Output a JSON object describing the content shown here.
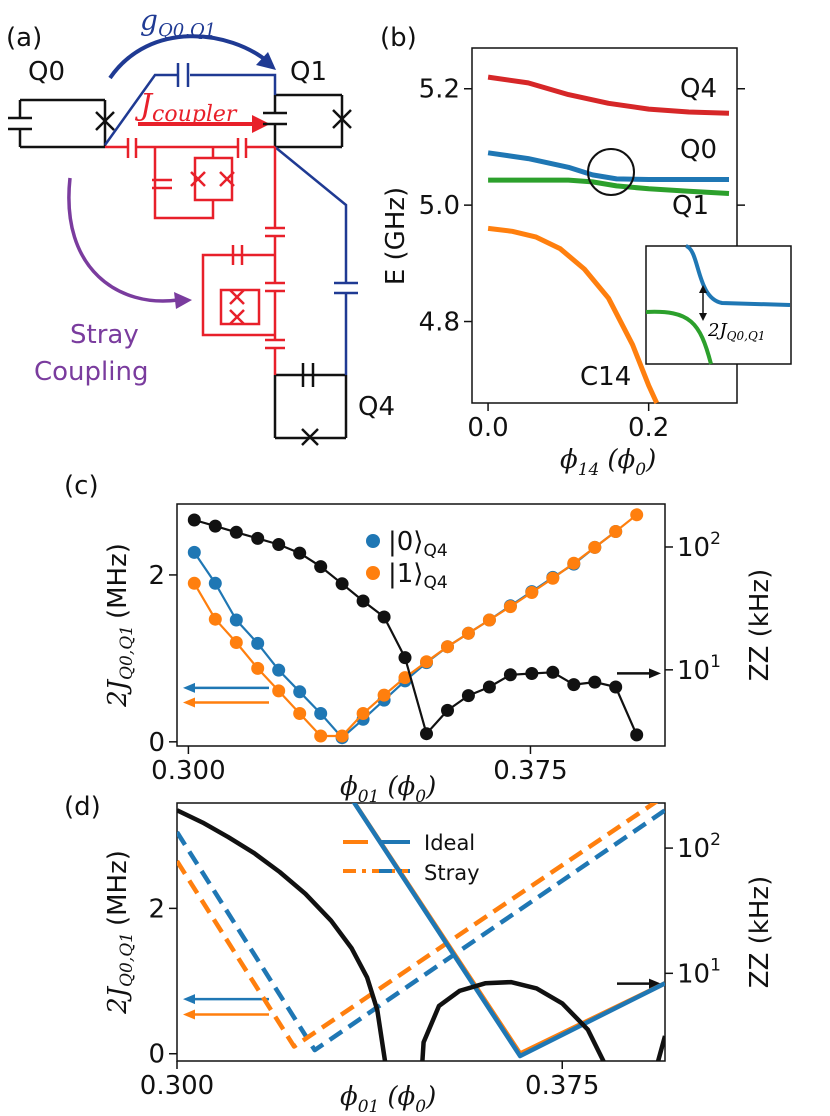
{
  "panel_a": {
    "label": "(a)",
    "q0": "Q0",
    "q1": "Q1",
    "q4": "Q4",
    "g_text": "g",
    "g_sub": "Q0,Q1",
    "j_text": "J",
    "j_sub": "coupler",
    "stray_line1": "Stray",
    "stray_line2": "Coupling",
    "colors": {
      "blue": "#1f3a93",
      "red": "#e8202a",
      "purple": "#7a3c9e",
      "black": "#111111"
    }
  },
  "chart_data": [
    {
      "panel": "(b)",
      "type": "line",
      "xlabel_main": "ϕ",
      "xlabel_sub": "14",
      "xlabel_unit": "(ϕ",
      "xlabel_unit_sub": "0",
      "ylabel": "E (GHz)",
      "xlim": [
        -0.02,
        0.31
      ],
      "ylim": [
        4.66,
        5.27
      ],
      "xticks": [
        0.0,
        0.2
      ],
      "xtick_labels": [
        "0.0",
        "0.2"
      ],
      "yticks": [
        4.8,
        5.0,
        5.2
      ],
      "ytick_labels": [
        "4.8",
        "5.0",
        "5.2"
      ],
      "series": [
        {
          "name": "Q4",
          "color": "#d62728",
          "x": [
            0.0,
            0.05,
            0.1,
            0.15,
            0.2,
            0.25,
            0.3
          ],
          "y": [
            5.22,
            5.21,
            5.19,
            5.175,
            5.165,
            5.16,
            5.158
          ]
        },
        {
          "name": "Q0",
          "color": "#1f77b4",
          "x": [
            0.0,
            0.05,
            0.1,
            0.13,
            0.16,
            0.2,
            0.25,
            0.3
          ],
          "y": [
            5.09,
            5.08,
            5.065,
            5.052,
            5.045,
            5.044,
            5.044,
            5.044
          ]
        },
        {
          "name": "Q1",
          "color": "#2ca02c",
          "x": [
            0.0,
            0.05,
            0.1,
            0.13,
            0.16,
            0.2,
            0.25,
            0.3
          ],
          "y": [
            5.043,
            5.043,
            5.043,
            5.04,
            5.033,
            5.028,
            5.024,
            5.02
          ]
        },
        {
          "name": "C14",
          "color": "#ff7f0e",
          "x": [
            0.0,
            0.03,
            0.06,
            0.09,
            0.12,
            0.15,
            0.18,
            0.2,
            0.21
          ],
          "y": [
            4.96,
            4.955,
            4.945,
            4.925,
            4.89,
            4.84,
            4.76,
            4.69,
            4.655
          ]
        }
      ],
      "labels": [
        "Q4",
        "Q0",
        "Q1",
        "C14"
      ],
      "inset_label": "2J",
      "inset_label_sub": "Q0,Q1"
    },
    {
      "panel": "(c)",
      "type": "line",
      "xlabel_main": "ϕ",
      "xlabel_sub": "01",
      "xlabel_unit": "(ϕ",
      "xlabel_unit_sub": "0",
      "ylabel_left": "2J",
      "ylabel_left_sub": "Q0,Q1",
      "ylabel_left_unit": "(MHz)",
      "ylabel_right": "ZZ (kHz)",
      "xlim": [
        0.2975,
        0.4045
      ],
      "ylim_left": [
        -0.05,
        2.85
      ],
      "ylim_right_log": [
        0.38,
        2.35
      ],
      "xticks": [
        0.3,
        0.375
      ],
      "xtick_labels": [
        "0.300",
        "0.375"
      ],
      "yticks_left": [
        0,
        2
      ],
      "ytick_labels_left": [
        "0",
        "2"
      ],
      "yticks_right": [
        1,
        2
      ],
      "ytick_labels_right": [
        "10",
        "10"
      ],
      "ytick_exponents_right": [
        "1",
        "2"
      ],
      "legend": [
        "|0⟩",
        "|1⟩"
      ],
      "legend_sub": "Q4",
      "series": [
        {
          "name": "|0⟩_Q4",
          "color": "#1f77b4",
          "axis": "left",
          "x": [
            0.3013,
            0.3059,
            0.3105,
            0.3152,
            0.3198,
            0.3244,
            0.329,
            0.3337,
            0.3383,
            0.3429,
            0.3475,
            0.3522,
            0.3568,
            0.3614,
            0.366,
            0.3706,
            0.3753,
            0.3799,
            0.3845,
            0.3891,
            0.3937
          ],
          "y": [
            2.27,
            1.9,
            1.46,
            1.18,
            0.86,
            0.6,
            0.34,
            0.05,
            0.27,
            0.5,
            0.73,
            0.95,
            1.14,
            1.3,
            1.46,
            1.63,
            1.8,
            1.97,
            2.13,
            2.33,
            2.52
          ]
        },
        {
          "name": "|1⟩_Q4",
          "color": "#ff7f0e",
          "axis": "left",
          "x": [
            0.3013,
            0.3059,
            0.3105,
            0.3152,
            0.3198,
            0.3244,
            0.329,
            0.3337,
            0.3383,
            0.3429,
            0.3475,
            0.3522,
            0.3568,
            0.3614,
            0.366,
            0.3706,
            0.3753,
            0.3799,
            0.3845,
            0.3891,
            0.3937,
            0.3983
          ],
          "y": [
            1.9,
            1.47,
            1.19,
            0.88,
            0.61,
            0.34,
            0.07,
            0.07,
            0.34,
            0.56,
            0.77,
            0.96,
            1.14,
            1.3,
            1.46,
            1.62,
            1.79,
            1.96,
            2.14,
            2.33,
            2.52,
            2.72
          ]
        },
        {
          "name": "ZZ",
          "color": "#111111",
          "axis": "right",
          "x": [
            0.3013,
            0.3059,
            0.3105,
            0.3152,
            0.3198,
            0.3244,
            0.329,
            0.3337,
            0.3383,
            0.3429,
            0.3475,
            0.3522,
            0.3568,
            0.3614,
            0.366,
            0.3706,
            0.3753,
            0.3799,
            0.3845,
            0.3891,
            0.3937,
            0.3983
          ],
          "log10y": [
            2.22,
            2.17,
            2.12,
            2.07,
            2.02,
            1.95,
            1.84,
            1.7,
            1.56,
            1.43,
            1.1,
            0.48,
            0.67,
            0.79,
            0.86,
            0.96,
            0.97,
            0.98,
            0.88,
            0.9,
            0.86,
            0.47
          ]
        }
      ],
      "arrow_colors": [
        "#1f77b4",
        "#ff7f0e",
        "#111111"
      ]
    },
    {
      "panel": "(d)",
      "type": "line",
      "xlabel_main": "ϕ",
      "xlabel_sub": "01",
      "xlabel_unit": "(ϕ",
      "xlabel_unit_sub": "0",
      "ylabel_left": "2J",
      "ylabel_left_sub": "Q0,Q1",
      "ylabel_left_unit": "(MHz)",
      "ylabel_right": "ZZ (kHz)",
      "xlim": [
        0.3,
        0.395
      ],
      "ylim_left": [
        -0.1,
        3.45
      ],
      "ylim_right_log": [
        0.3,
        2.36
      ],
      "xticks": [
        0.3,
        0.375
      ],
      "xtick_labels": [
        "0.300",
        "0.375"
      ],
      "yticks_left": [
        0,
        2
      ],
      "ytick_labels_left": [
        "0",
        "2"
      ],
      "yticks_right": [
        1,
        2
      ],
      "ytick_labels_right": [
        "10",
        "10"
      ],
      "ytick_exponents_right": [
        "1",
        "2"
      ],
      "legend": [
        "Ideal",
        "Stray"
      ],
      "series": [
        {
          "name": "Ideal blue",
          "color": "#1f77b4",
          "dash": "long",
          "axis": "left",
          "x": [
            0.3,
            0.3268,
            0.395
          ],
          "y": [
            3.05,
            0.05,
            3.35
          ]
        },
        {
          "name": "Ideal orange",
          "color": "#ff7f0e",
          "dash": "long",
          "axis": "left",
          "x": [
            0.3,
            0.3228,
            0.395
          ],
          "y": [
            2.65,
            0.1,
            3.55
          ]
        },
        {
          "name": "ZZ ideal",
          "color": "#ff7f0e",
          "dash": "solid",
          "axis": "right",
          "x": [
            0.3315,
            0.3668,
            0.395
          ],
          "log10y": [
            2.55,
            0.36,
            0.92
          ]
        },
        {
          "name": "ZZ stray",
          "color": "#1f77b4",
          "dash": "solid",
          "axis": "right",
          "x": [
            0.3315,
            0.3668,
            0.395
          ],
          "log10y": [
            2.55,
            0.34,
            0.92
          ]
        },
        {
          "name": "2J stray",
          "color": "#111111",
          "dash": "solid",
          "axis": "left",
          "x": [
            0.3,
            0.305,
            0.31,
            0.315,
            0.32,
            0.325,
            0.33,
            0.334,
            0.337,
            0.339,
            0.3405
          ],
          "y": [
            3.35,
            3.18,
            2.98,
            2.76,
            2.5,
            2.2,
            1.83,
            1.45,
            1.05,
            0.6,
            -0.1
          ]
        },
        {
          "name": "ZZ hump",
          "color": "#111111",
          "dash": "solid",
          "axis": "right",
          "x": [
            0.3473,
            0.348,
            0.351,
            0.355,
            0.36,
            0.365,
            0.37,
            0.375,
            0.38,
            0.383,
            0.3845
          ],
          "log10y": [
            0.0,
            0.45,
            0.74,
            0.86,
            0.92,
            0.93,
            0.88,
            0.76,
            0.55,
            0.3,
            0.0
          ]
        },
        {
          "name": "ZZ tail",
          "color": "#111111",
          "dash": "solid",
          "axis": "right",
          "x": [
            0.3927,
            0.393,
            0.395
          ],
          "log10y": [
            0.0,
            0.2,
            0.5
          ]
        }
      ],
      "arrow_colors": [
        "#1f77b4",
        "#ff7f0e",
        "#111111"
      ]
    }
  ]
}
